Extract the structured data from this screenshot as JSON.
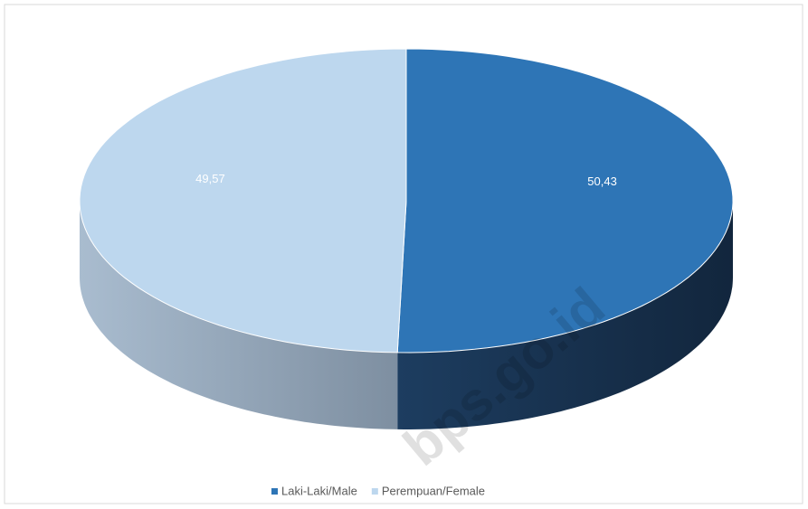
{
  "chart_data": {
    "type": "pie",
    "categories": [
      "Laki-Laki/Male",
      "Perempuan/Female"
    ],
    "values": [
      50.43,
      49.57
    ],
    "value_labels": [
      "50,43",
      "49,57"
    ],
    "colors": [
      "#2e75b6",
      "#bdd7ee"
    ],
    "legend": "bottom",
    "watermark": "bps.go.id"
  }
}
